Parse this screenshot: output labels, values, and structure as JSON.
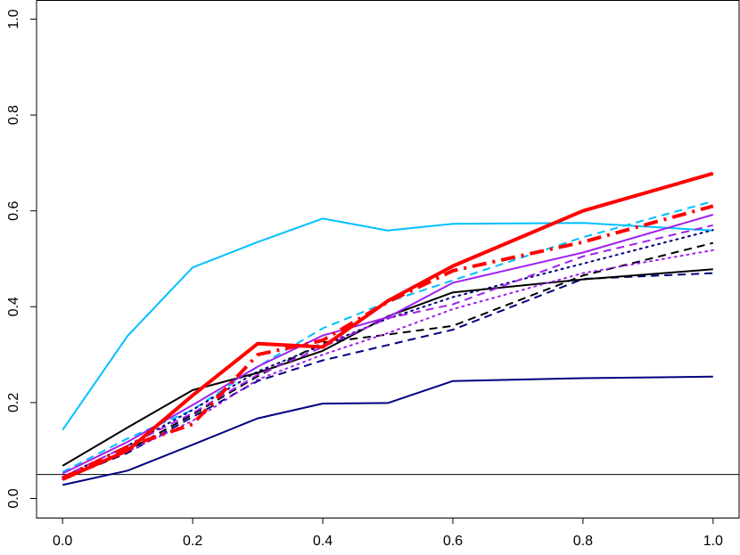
{
  "chart_data": {
    "type": "line",
    "title": "",
    "xlabel": "",
    "ylabel": "",
    "xlim": [
      -0.04,
      1.04
    ],
    "ylim": [
      -0.04,
      1.04
    ],
    "x_ticks": [
      0.0,
      0.2,
      0.4,
      0.6,
      0.8,
      1.0
    ],
    "x_tick_labels": [
      "0.0",
      "0.2",
      "0.4",
      "0.6",
      "0.8",
      "1.0"
    ],
    "y_ticks": [
      0.0,
      0.2,
      0.4,
      0.6,
      0.8,
      1.0
    ],
    "y_tick_labels": [
      "0.0",
      "0.2",
      "0.4",
      "0.6",
      "0.8",
      "1.0"
    ],
    "grid": false,
    "legend": "none",
    "reference_line": {
      "y": 0.05,
      "color": "#000000"
    },
    "x": [
      0.0,
      0.1,
      0.2,
      0.3,
      0.4,
      0.5,
      0.6,
      0.8,
      1.0
    ],
    "series": [
      {
        "color": "#00bfff",
        "style": "solid",
        "width": 2,
        "values": [
          0.143,
          0.339,
          0.482,
          0.535,
          0.584,
          0.559,
          0.573,
          0.575,
          0.559
        ]
      },
      {
        "color": "#00bfff",
        "style": "dashed",
        "width": 2,
        "values": [
          0.055,
          0.125,
          0.185,
          0.275,
          0.355,
          0.41,
          0.455,
          0.545,
          0.62
        ]
      },
      {
        "color": "#000080",
        "style": "solid",
        "width": 2,
        "values": [
          0.028,
          0.058,
          0.112,
          0.167,
          0.198,
          0.199,
          0.245,
          0.251,
          0.254
        ]
      },
      {
        "color": "#000080",
        "style": "dashed",
        "width": 2,
        "values": [
          0.04,
          0.095,
          0.17,
          0.245,
          0.288,
          0.32,
          0.352,
          0.458,
          0.47
        ]
      },
      {
        "color": "#000080",
        "style": "dotted",
        "width": 2,
        "values": [
          0.045,
          0.11,
          0.185,
          0.265,
          0.32,
          0.375,
          0.42,
          0.49,
          0.56
        ]
      },
      {
        "color": "#000000",
        "style": "solid",
        "width": 2,
        "values": [
          0.068,
          0.148,
          0.226,
          0.262,
          0.308,
          0.38,
          0.43,
          0.457,
          0.478
        ]
      },
      {
        "color": "#000000",
        "style": "dashed",
        "width": 2,
        "values": [
          0.042,
          0.1,
          0.175,
          0.255,
          0.325,
          0.342,
          0.36,
          0.465,
          0.533
        ]
      },
      {
        "color": "#a020f0",
        "style": "solid",
        "width": 2,
        "values": [
          0.052,
          0.118,
          0.195,
          0.275,
          0.34,
          0.378,
          0.45,
          0.513,
          0.592
        ]
      },
      {
        "color": "#a020f0",
        "style": "dashed",
        "width": 2,
        "values": [
          0.045,
          0.11,
          0.178,
          0.258,
          0.316,
          0.376,
          0.405,
          0.505,
          0.57
        ]
      },
      {
        "color": "#a020f0",
        "style": "dotted",
        "width": 2,
        "values": [
          0.04,
          0.098,
          0.162,
          0.248,
          0.3,
          0.345,
          0.395,
          0.47,
          0.518
        ]
      },
      {
        "color": "#ff0000",
        "style": "solid",
        "width": 4,
        "values": [
          0.04,
          0.1,
          0.215,
          0.323,
          0.316,
          0.412,
          0.485,
          0.6,
          0.678
        ]
      },
      {
        "color": "#ff0000",
        "style": "dashdot",
        "width": 4,
        "values": [
          0.042,
          0.108,
          0.155,
          0.3,
          0.33,
          0.41,
          0.475,
          0.535,
          0.61
        ]
      }
    ]
  }
}
